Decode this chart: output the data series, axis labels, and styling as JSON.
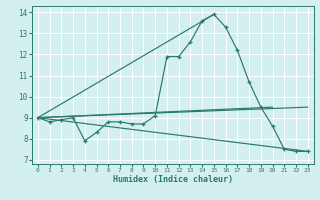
{
  "xlabel": "Humidex (Indice chaleur)",
  "bg_color": "#d4efef",
  "grid_color": "#ffffff",
  "line_color": "#2a7a6a",
  "xlim": [
    -0.5,
    23.5
  ],
  "ylim": [
    6.8,
    14.3
  ],
  "yticks": [
    7,
    8,
    9,
    10,
    11,
    12,
    13,
    14
  ],
  "xticks": [
    0,
    1,
    2,
    3,
    4,
    5,
    6,
    7,
    8,
    9,
    10,
    11,
    12,
    13,
    14,
    15,
    16,
    17,
    18,
    19,
    20,
    21,
    22,
    23
  ],
  "series": [
    {
      "x": [
        0,
        1,
        2,
        3,
        4,
        5,
        6,
        7,
        8,
        9,
        10,
        11,
        12,
        13,
        14,
        15,
        16,
        17,
        18,
        19,
        20,
        21,
        22,
        23
      ],
      "y": [
        9.0,
        8.8,
        8.9,
        9.0,
        7.9,
        8.3,
        8.8,
        8.8,
        8.7,
        8.7,
        9.1,
        11.9,
        11.9,
        12.6,
        13.6,
        13.9,
        13.3,
        12.2,
        10.7,
        9.5,
        8.6,
        7.5,
        7.4,
        7.4
      ],
      "has_markers": true
    },
    {
      "x": [
        0,
        23
      ],
      "y": [
        9.0,
        9.5
      ],
      "has_markers": false
    },
    {
      "x": [
        0,
        23
      ],
      "y": [
        9.0,
        7.4
      ],
      "has_markers": false
    },
    {
      "x": [
        0,
        15
      ],
      "y": [
        9.0,
        13.9
      ],
      "has_markers": false
    },
    {
      "x": [
        0,
        20
      ],
      "y": [
        9.0,
        9.5
      ],
      "has_markers": false
    }
  ]
}
